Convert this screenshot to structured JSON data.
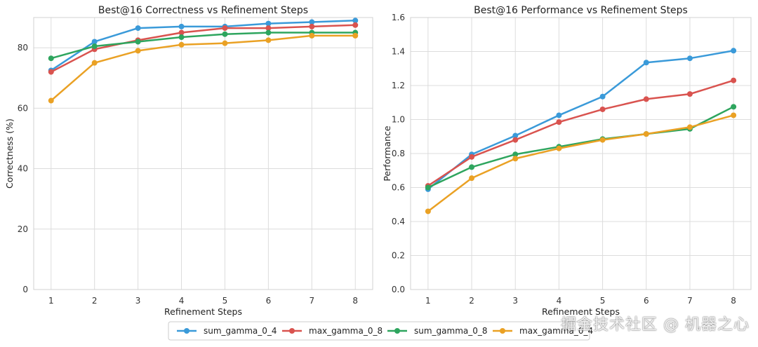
{
  "chart_data": [
    {
      "type": "line",
      "title": "Best@16 Correctness vs Refinement Steps",
      "xlabel": "Refinement Steps",
      "ylabel": "Correctness (%)",
      "x": [
        1,
        2,
        3,
        4,
        5,
        6,
        7,
        8
      ],
      "xlim": [
        0.6,
        8.4
      ],
      "ylim": [
        0,
        90
      ],
      "yticks": [
        0,
        20,
        40,
        60,
        80
      ],
      "grid": true,
      "series": [
        {
          "name": "sum_gamma_0_4",
          "color": "#3a9ad9",
          "values": [
            72.5,
            82,
            86.5,
            87,
            87,
            88,
            88.5,
            89
          ]
        },
        {
          "name": "max_gamma_0_8",
          "color": "#d9534f",
          "values": [
            72,
            79.5,
            82.5,
            85,
            86.5,
            86.5,
            87,
            87.5
          ]
        },
        {
          "name": "sum_gamma_0_8",
          "color": "#2ea55e",
          "values": [
            76.5,
            80.5,
            82,
            83.5,
            84.5,
            85,
            85,
            85
          ]
        },
        {
          "name": "max_gamma_0_4",
          "color": "#eaa124",
          "values": [
            62.5,
            75,
            79,
            81,
            81.5,
            82.5,
            84,
            84
          ]
        }
      ]
    },
    {
      "type": "line",
      "title": "Best@16 Performance vs Refinement Steps",
      "xlabel": "Refinement Steps",
      "ylabel": "Performance",
      "x": [
        1,
        2,
        3,
        4,
        5,
        6,
        7,
        8
      ],
      "xlim": [
        0.6,
        8.4
      ],
      "ylim": [
        0,
        1.6
      ],
      "yticks": [
        0.0,
        0.2,
        0.4,
        0.6,
        0.8,
        1.0,
        1.2,
        1.4,
        1.6
      ],
      "grid": true,
      "series": [
        {
          "name": "sum_gamma_0_4",
          "color": "#3a9ad9",
          "values": [
            0.59,
            0.795,
            0.905,
            1.025,
            1.135,
            1.335,
            1.36,
            1.405
          ]
        },
        {
          "name": "max_gamma_0_8",
          "color": "#d9534f",
          "values": [
            0.61,
            0.78,
            0.88,
            0.985,
            1.06,
            1.12,
            1.15,
            1.23
          ]
        },
        {
          "name": "sum_gamma_0_8",
          "color": "#2ea55e",
          "values": [
            0.6,
            0.72,
            0.795,
            0.84,
            0.885,
            0.915,
            0.945,
            1.075
          ]
        },
        {
          "name": "max_gamma_0_4",
          "color": "#eaa124",
          "values": [
            0.46,
            0.655,
            0.77,
            0.83,
            0.88,
            0.915,
            0.955,
            1.025
          ]
        }
      ]
    }
  ],
  "legend": {
    "placement": "bottom-center",
    "entries": [
      "sum_gamma_0_4",
      "max_gamma_0_8",
      "sum_gamma_0_8",
      "max_gamma_0_4"
    ]
  },
  "watermark": "掘金技术社区 @ 机器之心"
}
